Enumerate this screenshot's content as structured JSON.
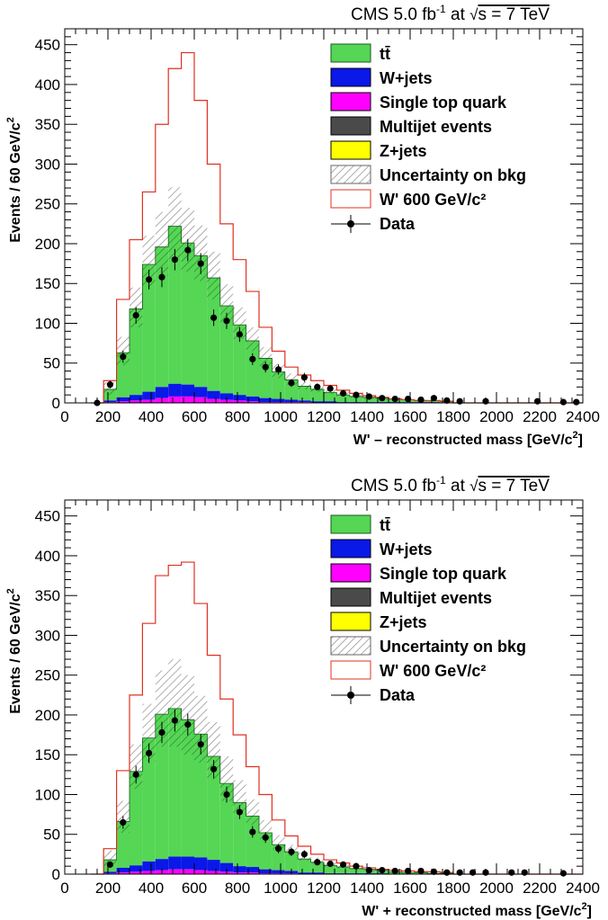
{
  "colors": {
    "ttbar": "#55d655",
    "wjets": "#0a18e8",
    "singletop": "#ff00ff",
    "multijet": "#4a4a4a",
    "zjets": "#ffff00",
    "signal": "#e03020",
    "data": "#000000"
  },
  "chart_data": [
    {
      "type": "bar",
      "title_main": "CMS 5.0 fb",
      "title_sup": "-1",
      "title_rest": " at ",
      "title_energy": "s  =  7 TeV",
      "xlabel_prefix": "W",
      "xlabel_sign": "' –",
      "xlabel_rest": " reconstructed mass [GeV/c",
      "xlabel_end": "]",
      "ylabel": "Events / 60 GeV/c",
      "ylabel_sup": "2",
      "xlim": [
        0,
        2400
      ],
      "ylim": [
        0,
        470
      ],
      "x_ticks": [
        "0",
        "200",
        "400",
        "600",
        "800",
        "1000",
        "1200",
        "1400",
        "1600",
        "1800",
        "2000",
        "2200",
        "2400"
      ],
      "y_ticks": [
        "0",
        "50",
        "100",
        "150",
        "200",
        "250",
        "300",
        "350",
        "400",
        "450"
      ],
      "legend": [
        "tt̄",
        "W+jets",
        "Single top quark",
        "Multijet events",
        "Z+jets",
        "Uncertainty on bkg",
        "W' 600 GeV/c²",
        "Data"
      ],
      "bin_edges": [
        180,
        240,
        300,
        360,
        420,
        480,
        540,
        600,
        660,
        720,
        780,
        840,
        900,
        960,
        1020,
        1080,
        1140,
        1200,
        1260,
        1320,
        1380,
        1440,
        1500,
        1560,
        1620,
        1680,
        1740,
        1800
      ],
      "stack_total": [
        18,
        65,
        120,
        178,
        200,
        226,
        205,
        188,
        160,
        125,
        100,
        80,
        58,
        40,
        30,
        22,
        18,
        14,
        11,
        9,
        7,
        6,
        5,
        4,
        3,
        3,
        2
      ],
      "ttbar": [
        14,
        56,
        108,
        160,
        176,
        198,
        178,
        165,
        142,
        110,
        88,
        70,
        50,
        34,
        25,
        18,
        15,
        11,
        9,
        7,
        6,
        5,
        4,
        3,
        2,
        2,
        2
      ],
      "wjets": [
        2,
        5,
        7,
        10,
        14,
        16,
        15,
        13,
        10,
        8,
        7,
        6,
        5,
        4,
        3,
        2,
        2,
        2,
        1,
        1,
        1,
        1,
        1,
        1,
        1,
        1,
        0
      ],
      "singletop": [
        1,
        2,
        3,
        4,
        6,
        8,
        8,
        7,
        5,
        4,
        3,
        2,
        1,
        1,
        1,
        1,
        0,
        0,
        0,
        0,
        0,
        0,
        0,
        0,
        0,
        0,
        0
      ],
      "uncertainty": [
        8,
        18,
        25,
        32,
        40,
        45,
        40,
        35,
        30,
        24,
        20,
        15,
        12,
        9,
        7,
        5,
        4,
        3,
        3,
        2,
        2,
        2,
        2,
        1,
        1,
        1,
        1
      ],
      "signal": [
        28,
        130,
        205,
        265,
        350,
        420,
        440,
        380,
        300,
        225,
        180,
        140,
        95,
        65,
        45,
        35,
        28,
        22,
        16,
        12,
        9,
        7,
        5,
        4,
        3,
        3,
        2
      ],
      "data_x": [
        150,
        210,
        270,
        330,
        390,
        450,
        510,
        570,
        630,
        690,
        750,
        810,
        870,
        930,
        990,
        1050,
        1110,
        1170,
        1230,
        1290,
        1350,
        1410,
        1470,
        1530,
        1590,
        1650,
        1710,
        1770,
        1830,
        1950,
        2190,
        2310,
        2370
      ],
      "data_y": [
        0,
        23,
        58,
        110,
        155,
        158,
        180,
        192,
        175,
        107,
        103,
        86,
        55,
        45,
        42,
        25,
        32,
        20,
        18,
        12,
        10,
        8,
        6,
        5,
        5,
        4,
        6,
        3,
        2,
        2,
        2,
        1,
        1
      ]
    },
    {
      "type": "bar",
      "title_main": "CMS 5.0 fb",
      "title_sup": "-1",
      "title_rest": " at ",
      "title_energy": "s  =  7 TeV",
      "xlabel_prefix": "W",
      "xlabel_sign": "' +",
      "xlabel_rest": " reconstructed mass [GeV/c",
      "xlabel_end": "]",
      "ylabel": "Events / 60 GeV/c",
      "ylabel_sup": "2",
      "xlim": [
        0,
        2400
      ],
      "ylim": [
        0,
        470
      ],
      "x_ticks": [
        "0",
        "200",
        "400",
        "600",
        "800",
        "1000",
        "1200",
        "1400",
        "1600",
        "1800",
        "2000",
        "2200",
        "2400"
      ],
      "y_ticks": [
        "0",
        "50",
        "100",
        "150",
        "200",
        "250",
        "300",
        "350",
        "400",
        "450"
      ],
      "legend": [
        "tt̄",
        "W+jets",
        "Single top quark",
        "Multijet events",
        "Z+jets",
        "Uncertainty on bkg",
        "W' 600 GeV/c²",
        "Data"
      ],
      "bin_edges": [
        180,
        240,
        300,
        360,
        420,
        480,
        540,
        600,
        660,
        720,
        780,
        840,
        900,
        960,
        1020,
        1080,
        1140,
        1200,
        1260,
        1320,
        1380,
        1440,
        1500,
        1560,
        1620,
        1680,
        1740,
        1800
      ],
      "stack_total": [
        20,
        72,
        135,
        178,
        208,
        215,
        200,
        182,
        155,
        120,
        96,
        78,
        56,
        40,
        30,
        22,
        17,
        13,
        10,
        8,
        6,
        5,
        4,
        3,
        3,
        2,
        2
      ],
      "ttbar": [
        15,
        58,
        118,
        155,
        182,
        186,
        172,
        155,
        130,
        100,
        80,
        64,
        46,
        32,
        24,
        17,
        13,
        10,
        8,
        6,
        5,
        4,
        3,
        2,
        2,
        1,
        1
      ],
      "wjets": [
        2,
        6,
        8,
        12,
        14,
        16,
        16,
        16,
        14,
        11,
        8,
        7,
        5,
        4,
        3,
        2,
        2,
        1,
        1,
        1,
        1,
        1,
        0,
        0,
        0,
        0,
        0
      ],
      "singletop": [
        1,
        2,
        3,
        4,
        5,
        6,
        6,
        5,
        4,
        3,
        2,
        2,
        1,
        1,
        1,
        0,
        0,
        0,
        0,
        0,
        0,
        0,
        0,
        0,
        0,
        0,
        0
      ],
      "uncertainty": [
        10,
        20,
        28,
        36,
        48,
        55,
        50,
        42,
        36,
        28,
        22,
        16,
        12,
        9,
        7,
        5,
        4,
        3,
        3,
        2,
        2,
        2,
        1,
        1,
        1,
        1,
        1
      ],
      "signal": [
        32,
        130,
        225,
        315,
        375,
        388,
        392,
        340,
        275,
        220,
        175,
        135,
        100,
        68,
        48,
        35,
        25,
        18,
        14,
        10,
        8,
        6,
        5,
        4,
        3,
        3,
        2
      ],
      "data_x": [
        210,
        270,
        330,
        390,
        450,
        510,
        570,
        630,
        690,
        750,
        810,
        870,
        930,
        990,
        1050,
        1110,
        1170,
        1230,
        1290,
        1350,
        1410,
        1470,
        1530,
        1590,
        1650,
        1710,
        1770,
        1830,
        1890,
        1950,
        2070,
        2130,
        2310
      ],
      "data_y": [
        12,
        65,
        125,
        152,
        178,
        193,
        188,
        163,
        132,
        100,
        78,
        53,
        46,
        32,
        28,
        25,
        15,
        13,
        12,
        10,
        5,
        5,
        4,
        4,
        4,
        3,
        2,
        2,
        2,
        2,
        2,
        2,
        1
      ]
    }
  ]
}
